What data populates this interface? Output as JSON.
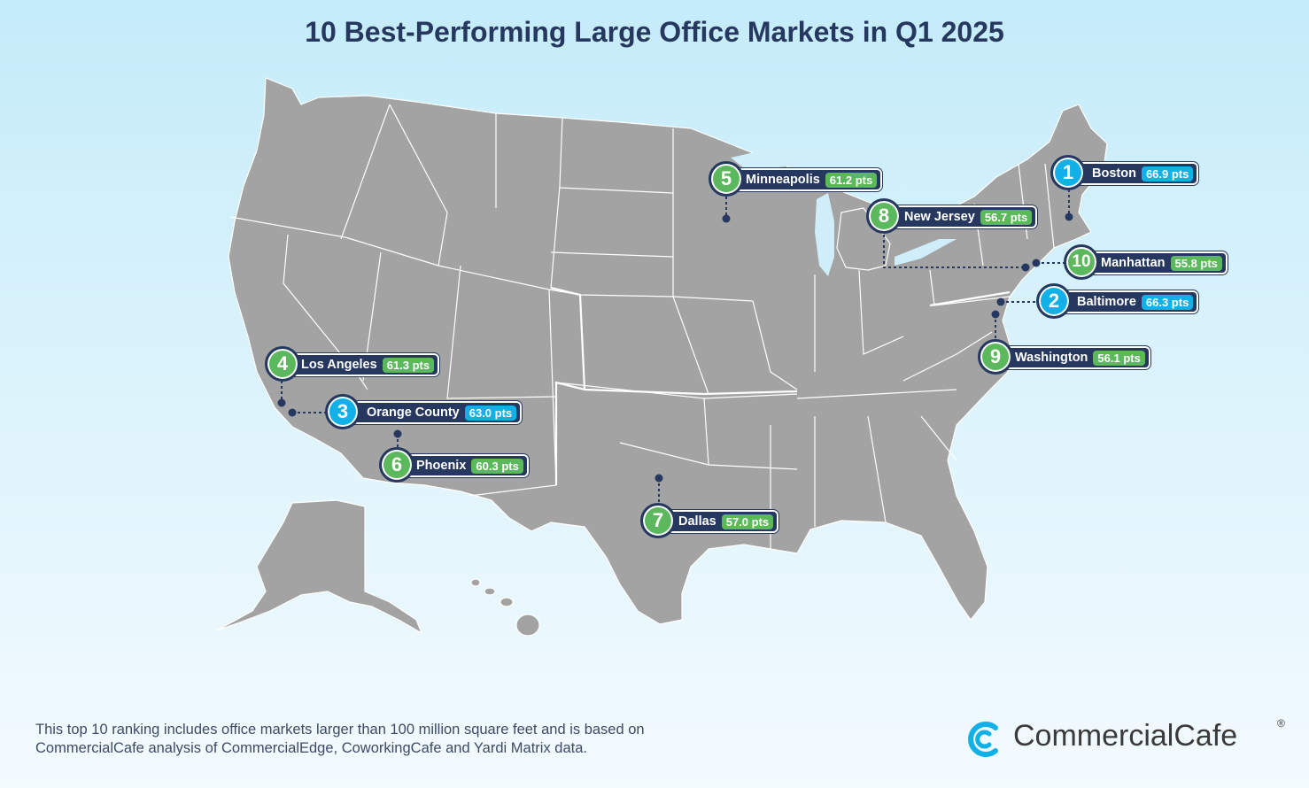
{
  "title": "10 Best-Performing Large Office Markets in Q1 2025",
  "footnote": "This top 10 ranking includes office markets larger than 100 million square feet and is based on CommercialCafe analysis of CommercialEdge, CoworkingCafe and Yardi Matrix data.",
  "brand": {
    "name": "CommercialCafe",
    "registered": "®"
  },
  "colors": {
    "title": "#26385f",
    "map_fill": "#a3a3a3",
    "label_bg": "#26385f",
    "top3_accent": "#11b0e6",
    "other_accent": "#5cb85c"
  },
  "markets": [
    {
      "rank": "1",
      "city": "Boston",
      "score": "66.9 pts",
      "accent": "blue"
    },
    {
      "rank": "2",
      "city": "Baltimore",
      "score": "66.3 pts",
      "accent": "blue"
    },
    {
      "rank": "3",
      "city": "Orange County",
      "score": "63.0 pts",
      "accent": "blue"
    },
    {
      "rank": "4",
      "city": "Los Angeles",
      "score": "61.3 pts",
      "accent": "green"
    },
    {
      "rank": "5",
      "city": "Minneapolis",
      "score": "61.2 pts",
      "accent": "green"
    },
    {
      "rank": "6",
      "city": "Phoenix",
      "score": "60.3 pts",
      "accent": "green"
    },
    {
      "rank": "7",
      "city": "Dallas",
      "score": "57.0 pts",
      "accent": "green"
    },
    {
      "rank": "8",
      "city": "New Jersey",
      "score": "56.7 pts",
      "accent": "green"
    },
    {
      "rank": "9",
      "city": "Washington",
      "score": "56.1 pts",
      "accent": "green"
    },
    {
      "rank": "10",
      "city": "Manhattan",
      "score": "55.8 pts",
      "accent": "green"
    }
  ]
}
